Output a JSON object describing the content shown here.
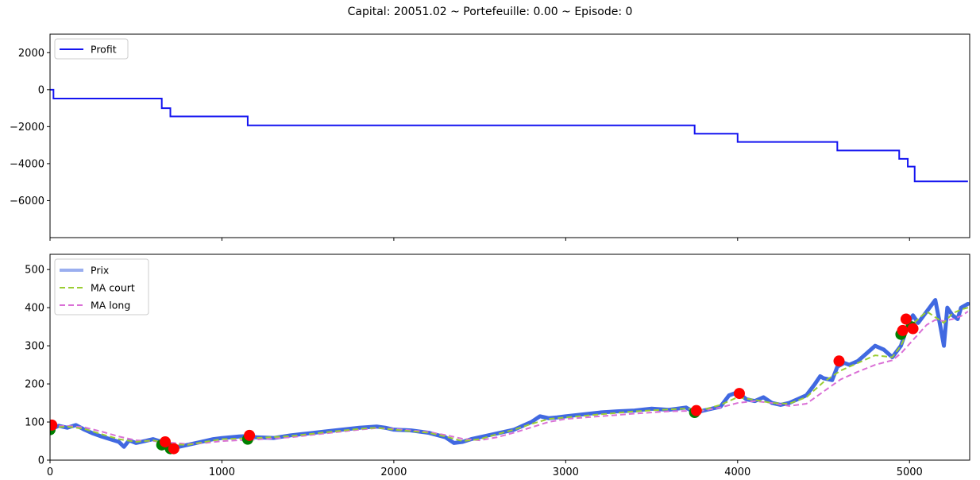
{
  "figure": {
    "title": "Capital: 20051.02 ~ Portefeuille: 0.00 ~ Episode: 0"
  },
  "colors": {
    "profit": "#1414f0",
    "prix": "#4169e1",
    "prix_legend": "#9aaeef",
    "ma_court": "#9acd32",
    "ma_long": "#da70d6",
    "buy": "#008000",
    "sell": "#ff0000"
  },
  "chart_data": [
    {
      "type": "line",
      "panel": "top",
      "xlim": [
        0,
        5350
      ],
      "ylim": [
        -8000,
        3000
      ],
      "xticks": [
        0,
        1000,
        2000,
        3000,
        4000,
        5000
      ],
      "yticks": [
        2000,
        0,
        -2000,
        -4000,
        -6000
      ],
      "ytick_labels": [
        "2000",
        "0",
        "−2000",
        "−4000",
        "−6000"
      ],
      "legend": {
        "position": "upper-left",
        "entries": [
          "Profit"
        ]
      },
      "series": [
        {
          "name": "Profit",
          "step": true,
          "x": [
            0,
            20,
            650,
            700,
            1150,
            3750,
            4000,
            4580,
            4940,
            4990,
            5030,
            5340
          ],
          "y": [
            0,
            -480,
            -1000,
            -1450,
            -1930,
            -2380,
            -2830,
            -3290,
            -3740,
            -4160,
            -4960,
            -4960
          ]
        }
      ]
    },
    {
      "type": "line",
      "panel": "bottom",
      "xlim": [
        0,
        5350
      ],
      "ylim": [
        0,
        540
      ],
      "xticks": [
        0,
        1000,
        2000,
        3000,
        4000,
        5000
      ],
      "xtick_labels": [
        "0",
        "1000",
        "2000",
        "3000",
        "4000",
        "5000"
      ],
      "yticks": [
        500,
        400,
        300,
        200,
        100,
        0
      ],
      "ytick_labels": [
        "500",
        "400",
        "300",
        "200",
        "100",
        "0"
      ],
      "legend": {
        "position": "upper-left",
        "entries": [
          "Prix",
          "MA court",
          "MA long"
        ]
      },
      "series": [
        {
          "name": "Prix",
          "x": [
            0,
            50,
            100,
            150,
            200,
            250,
            300,
            350,
            400,
            430,
            460,
            500,
            550,
            600,
            650,
            700,
            750,
            800,
            850,
            900,
            950,
            1000,
            1050,
            1100,
            1150,
            1200,
            1300,
            1400,
            1500,
            1600,
            1700,
            1800,
            1900,
            1950,
            2000,
            2100,
            2200,
            2300,
            2350,
            2400,
            2450,
            2500,
            2600,
            2700,
            2750,
            2800,
            2850,
            2900,
            2950,
            3000,
            3100,
            3200,
            3300,
            3400,
            3500,
            3600,
            3700,
            3750,
            3800,
            3900,
            3950,
            4000,
            4050,
            4100,
            4150,
            4200,
            4250,
            4300,
            4350,
            4400,
            4450,
            4480,
            4500,
            4550,
            4580,
            4620,
            4650,
            4700,
            4750,
            4800,
            4850,
            4900,
            4950,
            4980,
            5000,
            5020,
            5050,
            5100,
            5150,
            5180,
            5200,
            5220,
            5250,
            5280,
            5300,
            5340
          ],
          "y": [
            80,
            90,
            85,
            92,
            80,
            70,
            62,
            55,
            48,
            35,
            52,
            45,
            50,
            55,
            48,
            38,
            35,
            40,
            45,
            50,
            55,
            58,
            60,
            62,
            63,
            60,
            58,
            65,
            70,
            75,
            80,
            85,
            88,
            85,
            80,
            78,
            72,
            60,
            45,
            48,
            55,
            60,
            70,
            80,
            90,
            100,
            115,
            110,
            112,
            115,
            120,
            125,
            128,
            130,
            135,
            132,
            138,
            125,
            130,
            140,
            170,
            178,
            160,
            155,
            165,
            150,
            145,
            150,
            160,
            170,
            200,
            220,
            215,
            210,
            245,
            255,
            250,
            260,
            280,
            300,
            290,
            270,
            300,
            340,
            365,
            380,
            360,
            390,
            420,
            350,
            300,
            400,
            380,
            370,
            400,
            410
          ]
        },
        {
          "name": "MA court",
          "x": [
            0,
            100,
            200,
            300,
            400,
            500,
            600,
            700,
            800,
            900,
            1000,
            1200,
            1400,
            1600,
            1800,
            1900,
            2000,
            2200,
            2300,
            2400,
            2500,
            2600,
            2700,
            2800,
            2900,
            3000,
            3200,
            3400,
            3600,
            3700,
            3800,
            3900,
            4000,
            4100,
            4200,
            4300,
            4400,
            4500,
            4600,
            4700,
            4800,
            4900,
            4950,
            5000,
            5050,
            5100,
            5150,
            5200,
            5250,
            5300,
            5340
          ],
          "y": [
            85,
            88,
            82,
            68,
            55,
            48,
            52,
            42,
            40,
            48,
            55,
            58,
            63,
            73,
            82,
            85,
            80,
            72,
            62,
            50,
            55,
            68,
            80,
            95,
            108,
            112,
            120,
            128,
            133,
            135,
            132,
            145,
            165,
            158,
            150,
            148,
            165,
            205,
            235,
            255,
            275,
            270,
            300,
            350,
            370,
            390,
            375,
            360,
            385,
            395,
            400
          ]
        },
        {
          "name": "MA long",
          "x": [
            0,
            100,
            200,
            300,
            400,
            500,
            600,
            700,
            800,
            900,
            1000,
            1200,
            1400,
            1600,
            1800,
            1900,
            2000,
            2100,
            2200,
            2300,
            2400,
            2500,
            2600,
            2700,
            2800,
            2900,
            3000,
            3200,
            3400,
            3600,
            3800,
            3900,
            4000,
            4100,
            4200,
            4300,
            4400,
            4500,
            4600,
            4700,
            4800,
            4900,
            4950,
            5000,
            5050,
            5100,
            5150,
            5200,
            5250,
            5300,
            5340
          ],
          "y": [
            88,
            90,
            86,
            75,
            62,
            52,
            50,
            46,
            42,
            45,
            50,
            54,
            60,
            70,
            80,
            84,
            82,
            78,
            74,
            66,
            56,
            52,
            60,
            72,
            86,
            100,
            108,
            115,
            122,
            128,
            130,
            138,
            150,
            155,
            150,
            142,
            148,
            180,
            212,
            232,
            250,
            262,
            280,
            305,
            330,
            355,
            368,
            365,
            370,
            378,
            390
          ]
        }
      ],
      "markers": {
        "buy": {
          "x": [
            0,
            650,
            700,
            1150,
            3750,
            4950,
            5010
          ],
          "y": [
            80,
            40,
            30,
            55,
            125,
            330,
            350
          ]
        },
        "sell": {
          "x": [
            10,
            670,
            720,
            1160,
            3760,
            4010,
            4590,
            4960,
            4980,
            5020
          ],
          "y": [
            92,
            48,
            30,
            65,
            130,
            175,
            260,
            340,
            370,
            345
          ]
        }
      }
    }
  ]
}
